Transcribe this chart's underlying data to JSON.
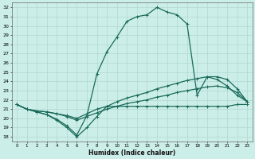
{
  "bg_color": "#cceee8",
  "grid_color": "#b0d8d0",
  "line_color": "#1a6b5a",
  "xlim": [
    -0.5,
    23.5
  ],
  "ylim": [
    17.5,
    32.5
  ],
  "xticks": [
    0,
    1,
    2,
    3,
    4,
    5,
    6,
    7,
    8,
    9,
    10,
    11,
    12,
    13,
    14,
    15,
    16,
    17,
    18,
    19,
    20,
    21,
    22,
    23
  ],
  "yticks": [
    18,
    19,
    20,
    21,
    22,
    23,
    24,
    25,
    26,
    27,
    28,
    29,
    30,
    31,
    32
  ],
  "xlabel": "Humidex (Indice chaleur)",
  "line1_x": [
    0,
    1,
    2,
    3,
    4,
    5,
    6,
    7,
    8,
    9,
    10,
    11,
    12,
    13,
    14,
    15,
    16,
    17,
    18,
    19,
    20,
    21,
    22,
    23
  ],
  "line1_y": [
    21.5,
    21.0,
    20.7,
    20.4,
    19.9,
    19.2,
    18.2,
    20.3,
    24.8,
    27.2,
    28.8,
    30.5,
    31.0,
    31.2,
    32.0,
    31.5,
    31.2,
    30.2,
    22.5,
    24.5,
    24.2,
    23.5,
    22.5,
    21.8
  ],
  "line2_x": [
    0,
    1,
    2,
    3,
    4,
    5,
    6,
    7,
    8,
    9,
    10,
    11,
    12,
    13,
    14,
    15,
    16,
    17,
    18,
    19,
    20,
    21,
    22,
    23
  ],
  "line2_y": [
    21.5,
    21.0,
    20.7,
    20.4,
    19.8,
    19.0,
    18.0,
    19.0,
    20.2,
    21.3,
    21.3,
    21.3,
    21.3,
    21.3,
    21.3,
    21.3,
    21.3,
    21.3,
    21.3,
    21.3,
    21.3,
    21.3,
    21.5,
    21.5
  ],
  "line3_x": [
    0,
    1,
    2,
    3,
    4,
    5,
    6,
    7,
    8,
    9,
    10,
    11,
    12,
    13,
    14,
    15,
    16,
    17,
    18,
    19,
    20,
    21,
    22,
    23
  ],
  "line3_y": [
    21.5,
    21.0,
    20.8,
    20.7,
    20.5,
    20.3,
    20.0,
    20.5,
    21.0,
    21.3,
    21.8,
    22.2,
    22.5,
    22.8,
    23.2,
    23.5,
    23.8,
    24.1,
    24.3,
    24.5,
    24.5,
    24.2,
    23.2,
    21.8
  ],
  "line4_x": [
    0,
    1,
    2,
    3,
    4,
    5,
    6,
    7,
    8,
    9,
    10,
    11,
    12,
    13,
    14,
    15,
    16,
    17,
    18,
    19,
    20,
    21,
    22,
    23
  ],
  "line4_y": [
    21.5,
    21.0,
    20.8,
    20.7,
    20.5,
    20.2,
    19.8,
    20.2,
    20.6,
    21.0,
    21.3,
    21.6,
    21.8,
    22.0,
    22.3,
    22.5,
    22.8,
    23.0,
    23.2,
    23.4,
    23.5,
    23.3,
    22.8,
    21.8
  ],
  "lw": 0.9,
  "ms": 3.0
}
